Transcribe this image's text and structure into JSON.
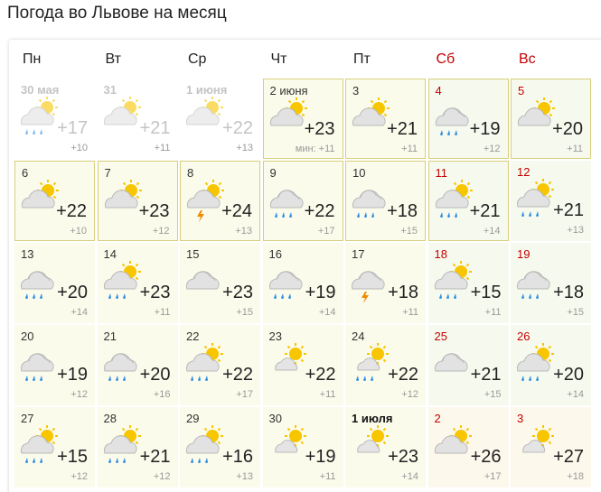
{
  "title": "Погода во Львове на месяц",
  "weekdays": [
    "Пн",
    "Вт",
    "Ср",
    "Чт",
    "Пт",
    "Сб",
    "Вс"
  ],
  "weeks": [
    [
      {
        "date": "30 мая",
        "temp": "+17",
        "min": "+10"
      },
      {
        "date": "31",
        "temp": "+21",
        "min": "+11"
      },
      {
        "date": "1 июня",
        "temp": "+22",
        "min": "+13"
      },
      {
        "date": "2 июня",
        "temp": "+23",
        "min": "мин: +11"
      },
      {
        "date": "3",
        "temp": "+21",
        "min": "+11"
      },
      {
        "date": "4",
        "temp": "+19",
        "min": "+12"
      },
      {
        "date": "5",
        "temp": "+20",
        "min": "+11"
      }
    ],
    [
      {
        "date": "6",
        "temp": "+22",
        "min": "+10"
      },
      {
        "date": "7",
        "temp": "+23",
        "min": "+12"
      },
      {
        "date": "8",
        "temp": "+24",
        "min": "+13"
      },
      {
        "date": "9",
        "temp": "+22",
        "min": "+17"
      },
      {
        "date": "10",
        "temp": "+18",
        "min": "+15"
      },
      {
        "date": "11",
        "temp": "+21",
        "min": "+14"
      },
      {
        "date": "12",
        "temp": "+21",
        "min": "+13"
      }
    ],
    [
      {
        "date": "13",
        "temp": "+20",
        "min": "+14"
      },
      {
        "date": "14",
        "temp": "+23",
        "min": "+11"
      },
      {
        "date": "15",
        "temp": "+23",
        "min": "+15"
      },
      {
        "date": "16",
        "temp": "+19",
        "min": "+14"
      },
      {
        "date": "17",
        "temp": "+18",
        "min": "+11"
      },
      {
        "date": "18",
        "temp": "+15",
        "min": "+11"
      },
      {
        "date": "19",
        "temp": "+18",
        "min": "+15"
      }
    ],
    [
      {
        "date": "20",
        "temp": "+19",
        "min": "+12"
      },
      {
        "date": "21",
        "temp": "+20",
        "min": "+16"
      },
      {
        "date": "22",
        "temp": "+22",
        "min": "+17"
      },
      {
        "date": "23",
        "temp": "+22",
        "min": "+11"
      },
      {
        "date": "24",
        "temp": "+22",
        "min": "+12"
      },
      {
        "date": "25",
        "temp": "+21",
        "min": "+15"
      },
      {
        "date": "26",
        "temp": "+20",
        "min": "+14"
      }
    ],
    [
      {
        "date": "27",
        "temp": "+15",
        "min": "+12"
      },
      {
        "date": "28",
        "temp": "+21",
        "min": "+12"
      },
      {
        "date": "29",
        "temp": "+16",
        "min": "+13"
      },
      {
        "date": "30",
        "temp": "+19",
        "min": "+11"
      },
      {
        "date": "1 июля",
        "temp": "+23",
        "min": "+14"
      },
      {
        "date": "2",
        "temp": "+26",
        "min": "+17"
      },
      {
        "date": "3",
        "temp": "+27",
        "min": "+18"
      }
    ]
  ]
}
